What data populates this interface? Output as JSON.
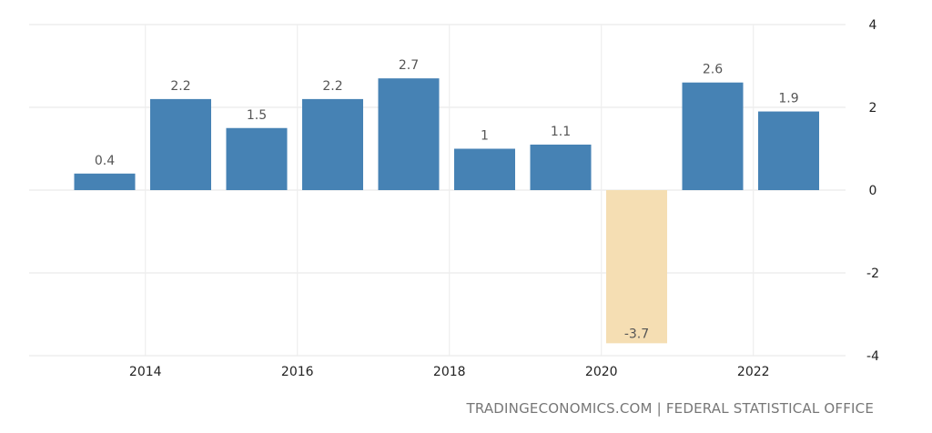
{
  "chart_data": {
    "type": "bar",
    "title": "",
    "xlabel": "",
    "ylabel": "",
    "x": [
      2013,
      2014,
      2015,
      2016,
      2017,
      2018,
      2019,
      2020,
      2021,
      2022
    ],
    "values": [
      0.4,
      2.2,
      1.5,
      2.2,
      2.7,
      1,
      1.1,
      -3.7,
      2.6,
      1.9
    ],
    "data_labels": [
      "0.4",
      "2.2",
      "1.5",
      "2.2",
      "2.7",
      "1",
      "1.1",
      "-3.7",
      "2.6",
      "1.9"
    ],
    "x_ticks": [
      "2014",
      "2016",
      "2018",
      "2020",
      "2022"
    ],
    "y_ticks": [
      "4",
      "2",
      "0",
      "-2",
      "-4"
    ],
    "ylim": [
      -4,
      4
    ],
    "y_axis_position": "right",
    "grid": true,
    "colors": {
      "positive": "#4682b4",
      "negative": "#f5deb3"
    }
  },
  "source": "TRADINGECONOMICS.COM | FEDERAL STATISTICAL OFFICE"
}
